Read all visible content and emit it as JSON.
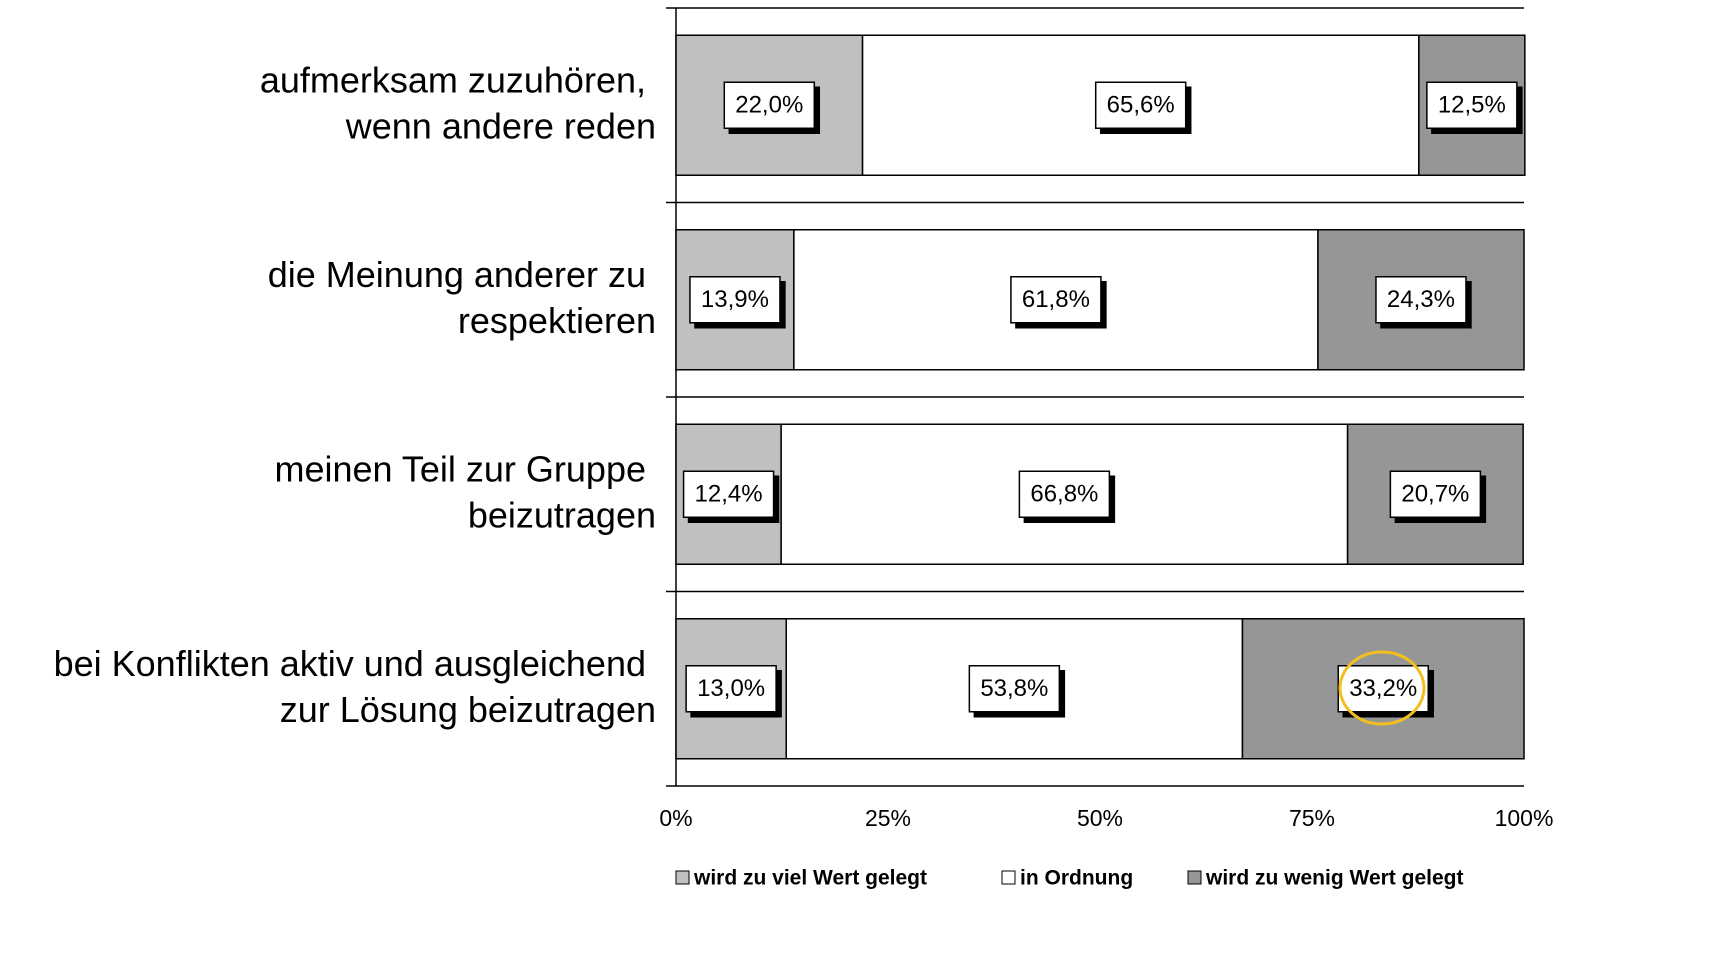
{
  "chart_data": {
    "type": "stacked_bar_horizontal",
    "categories": [
      "aufmerksam zuzuhören,\nwenn andere reden",
      "die Meinung anderer zu\nrespektieren",
      "meinen Teil zur Gruppe\nbeizutragen",
      "bei Konflikten aktiv und ausgleichend\nzur Lösung beizutragen"
    ],
    "series": [
      {
        "name": "wird zu viel Wert gelegt",
        "color": "#c0c0c0",
        "values": [
          22.0,
          13.9,
          12.4,
          13.0
        ],
        "value_labels": [
          "22,0%",
          "13,9%",
          "12,4%",
          "13,0%"
        ]
      },
      {
        "name": "in Ordnung",
        "color": "#ffffff",
        "values": [
          65.6,
          61.8,
          66.8,
          53.8
        ],
        "value_labels": [
          "65,6%",
          "61,8%",
          "66,8%",
          "53,8%"
        ]
      },
      {
        "name": "wird zu wenig Wert gelegt",
        "color": "#969696",
        "values": [
          12.5,
          24.3,
          20.7,
          33.2
        ],
        "value_labels": [
          "12,5%",
          "24,3%",
          "20,7%",
          "33,2%"
        ]
      }
    ],
    "xlim": [
      0,
      100
    ],
    "xticks": [
      {
        "value": 0,
        "label": "0%"
      },
      {
        "value": 25,
        "label": "25%"
      },
      {
        "value": 50,
        "label": "50%"
      },
      {
        "value": 75,
        "label": "75%"
      },
      {
        "value": 100,
        "label": "100%"
      }
    ],
    "legend": "bottom"
  }
}
